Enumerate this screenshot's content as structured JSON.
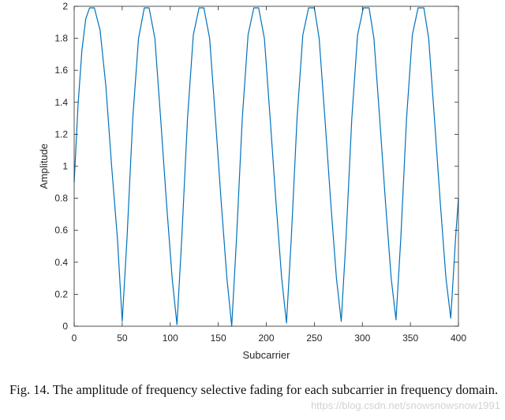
{
  "chart_data": {
    "type": "line",
    "title": "",
    "xlabel": "Subcarrier",
    "ylabel": "Amplitude",
    "xlim": [
      0,
      400
    ],
    "ylim": [
      0,
      2
    ],
    "xticks": [
      0,
      50,
      100,
      150,
      200,
      250,
      300,
      350,
      400
    ],
    "yticks": [
      0,
      0.2,
      0.4,
      0.6,
      0.8,
      1,
      1.2,
      1.4,
      1.6,
      1.8,
      2
    ],
    "grid": false,
    "legend": "none",
    "line_color": "#0072BD",
    "series": [
      {
        "name": "",
        "x": [
          0,
          4,
          8,
          12,
          16,
          21,
          27,
          33,
          39,
          45,
          50,
          55,
          61,
          67,
          73,
          78,
          84,
          90,
          96,
          102,
          107,
          112,
          118,
          124,
          130,
          135,
          141,
          147,
          153,
          159,
          164,
          169,
          175,
          181,
          187,
          192,
          198,
          204,
          210,
          216,
          221,
          226,
          232,
          238,
          244,
          250,
          255,
          261,
          267,
          273,
          278,
          283,
          289,
          295,
          301,
          307,
          312,
          318,
          324,
          330,
          335,
          340,
          346,
          352,
          358,
          364,
          369,
          375,
          381,
          387,
          392,
          397,
          400
        ],
        "y": [
          0.9,
          1.38,
          1.72,
          1.92,
          1.99,
          1.99,
          1.85,
          1.5,
          1.0,
          0.55,
          0.03,
          0.55,
          1.3,
          1.8,
          1.99,
          1.99,
          1.8,
          1.3,
          0.78,
          0.3,
          0.01,
          0.55,
          1.3,
          1.82,
          1.99,
          1.99,
          1.8,
          1.3,
          0.78,
          0.3,
          0.0,
          0.55,
          1.3,
          1.82,
          1.99,
          1.99,
          1.8,
          1.3,
          0.78,
          0.3,
          0.02,
          0.55,
          1.3,
          1.82,
          1.99,
          1.99,
          1.8,
          1.3,
          0.78,
          0.3,
          0.03,
          0.55,
          1.3,
          1.82,
          1.99,
          1.99,
          1.8,
          1.3,
          0.78,
          0.3,
          0.04,
          0.55,
          1.3,
          1.82,
          1.99,
          1.99,
          1.8,
          1.3,
          0.78,
          0.3,
          0.05,
          0.55,
          0.8
        ]
      }
    ]
  },
  "caption": {
    "text": "Fig. 14.   The amplitude of frequency selective fading for each subcarrier in frequency domain."
  },
  "watermark": {
    "text": "https://blog.csdn.net/snowsnowsnow1991"
  }
}
